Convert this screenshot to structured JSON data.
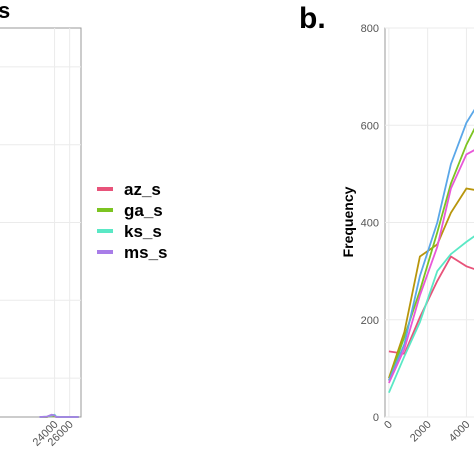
{
  "panel_labels": {
    "a": "s",
    "b": "b."
  },
  "colors": {
    "panel_bg": "#ffffff",
    "grid": "#ebebeb",
    "axis": "#9a9a9a"
  },
  "chart_data": [
    {
      "panel": "a",
      "type": "line",
      "xlabel": "",
      "ylabel": "",
      "x_tick_labels": [
        "24000",
        "26000"
      ],
      "x_ticks": [
        24000,
        26000
      ],
      "xlim": [
        16500,
        27500
      ],
      "ylim": [
        0,
        1
      ],
      "grid": true,
      "legend": "right",
      "series": [
        {
          "name": "az_s",
          "color": "#e8537a",
          "x": [
            22000,
            23000,
            23600,
            24000,
            24200,
            25000,
            26000,
            27200
          ],
          "y": [
            0,
            0,
            0.004,
            0.003,
            0,
            0,
            0,
            0
          ]
        },
        {
          "name": "ga_s",
          "color": "#7cc421",
          "x": [
            22000,
            23000,
            23600,
            24000,
            24200,
            25000,
            26000,
            27200
          ],
          "y": [
            0,
            0,
            0.005,
            0.002,
            0,
            0,
            0,
            0
          ]
        },
        {
          "name": "ks_s",
          "color": "#5ae8c5",
          "x": [
            22000,
            23000,
            23600,
            24000,
            24200,
            25000,
            26000,
            27200
          ],
          "y": [
            0,
            0.001,
            0.004,
            0.006,
            0.001,
            0,
            0,
            0
          ]
        },
        {
          "name": "ms_s",
          "color": "#a87de8",
          "x": [
            22000,
            23000,
            23600,
            24000,
            24200,
            25000,
            26000,
            27200
          ],
          "y": [
            0,
            0.001,
            0.006,
            0.004,
            0,
            0,
            0,
            0
          ]
        }
      ]
    },
    {
      "panel": "b",
      "type": "line",
      "xlabel": "",
      "ylabel": "Frequency",
      "x_tick_labels": [
        "0",
        "2000",
        "4000"
      ],
      "x_ticks": [
        0,
        2000,
        4000
      ],
      "y_ticks": [
        0,
        200,
        400,
        600,
        800
      ],
      "xlim": [
        -200,
        4700
      ],
      "ylim": [
        0,
        800
      ],
      "grid": true,
      "legend": "none",
      "series": [
        {
          "name": "",
          "color": "#e8537a",
          "x": [
            0,
            800,
            1600,
            2500,
            3200,
            4000,
            4700
          ],
          "y": [
            135,
            130,
            205,
            280,
            330,
            310,
            300
          ]
        },
        {
          "name": "",
          "color": "#b8960c",
          "x": [
            0,
            800,
            1600,
            2500,
            3200,
            4000,
            4700
          ],
          "y": [
            80,
            175,
            330,
            355,
            420,
            470,
            465
          ]
        },
        {
          "name": "",
          "color": "#7cc421",
          "x": [
            0,
            800,
            1600,
            2500,
            3200,
            4000,
            4700
          ],
          "y": [
            75,
            165,
            260,
            380,
            480,
            560,
            615
          ]
        },
        {
          "name": "",
          "color": "#5ae8c5",
          "x": [
            0,
            800,
            1600,
            2500,
            3200,
            4000,
            4700
          ],
          "y": [
            50,
            125,
            195,
            300,
            335,
            360,
            380
          ]
        },
        {
          "name": "",
          "color": "#5aa7e8",
          "x": [
            0,
            800,
            1600,
            2500,
            3200,
            4000,
            4700
          ],
          "y": [
            75,
            150,
            290,
            400,
            520,
            605,
            650
          ]
        },
        {
          "name": "",
          "color": "#e858d8",
          "x": [
            0,
            800,
            1600,
            2500,
            3200,
            4000,
            4700
          ],
          "y": [
            70,
            140,
            250,
            350,
            470,
            540,
            555
          ]
        }
      ]
    }
  ]
}
